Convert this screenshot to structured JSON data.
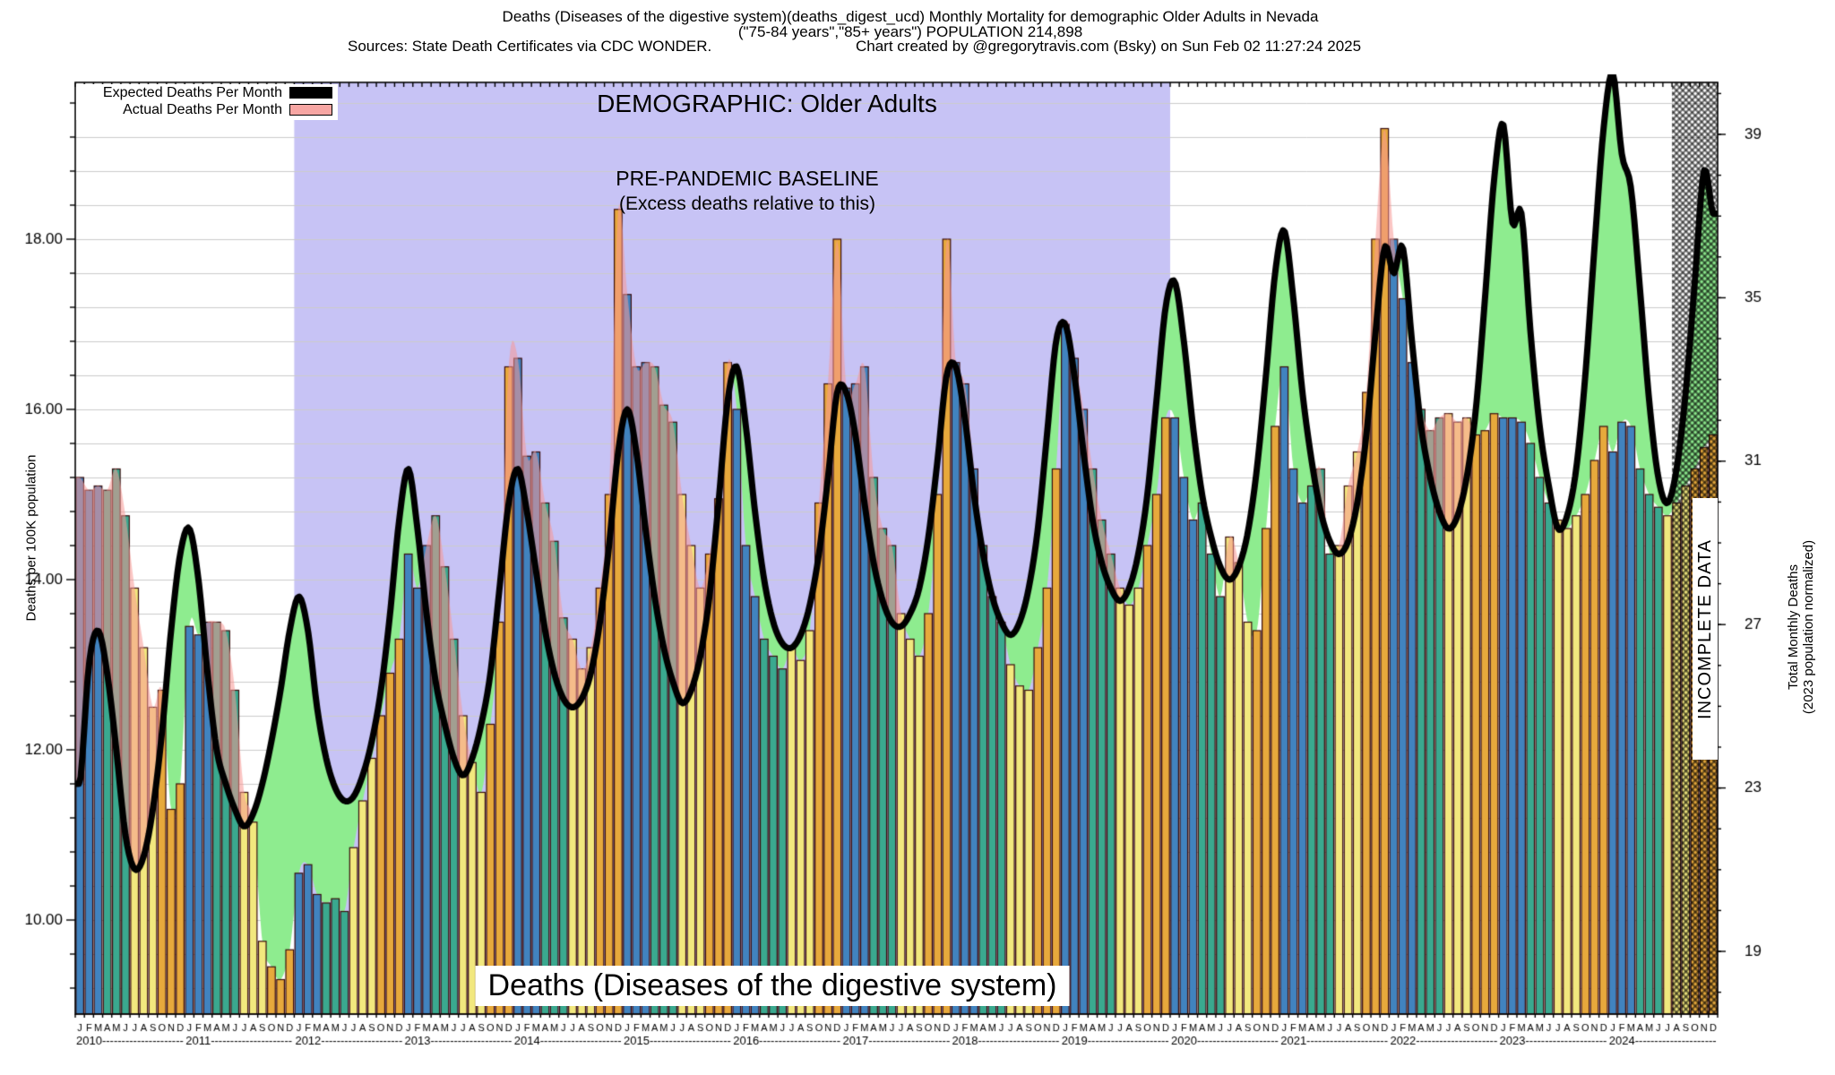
{
  "title": {
    "line1": "Deaths (Diseases of the digestive system)(deaths_digest_ucd) Monthly Mortality for demographic Older Adults in Nevada",
    "line2": "(\"75-84 years\",\"85+ years\") POPULATION 214,898",
    "sources": "Sources: State Death Certificates via CDC WONDER.",
    "credit": "Chart created by @gregorytravis.com (Bsky) on Sun Feb 02 11:27:24 2025"
  },
  "legend": {
    "expected_label": "Expected Deaths Per Month",
    "actual_label": "Actual Deaths Per Month"
  },
  "overlays": {
    "demographic": "DEMOGRAPHIC: Older Adults",
    "baseline_line1": "PRE-PANDEMIC BASELINE",
    "baseline_line2": "(Excess deaths relative to this)",
    "bottom_label": "Deaths (Diseases of the digestive system)",
    "incomplete_label": "INCOMPLETE DATA"
  },
  "left_axis": {
    "title": "Deaths per 100K population",
    "ticks": [
      10,
      12,
      14,
      16,
      18
    ],
    "minor_step": 0.4
  },
  "right_axis": {
    "title_line1": "Total Monthly Deaths",
    "title_line2": "(2023 population normalized)",
    "ticks": [
      19,
      23,
      27,
      31,
      35,
      39
    ]
  },
  "x_axis": {
    "month_letters": [
      "J",
      "F",
      "M",
      "A",
      "M",
      "J",
      "J",
      "A",
      "S",
      "O",
      "N",
      "D"
    ],
    "years": [
      2010,
      2011,
      2012,
      2013,
      2014,
      2015,
      2016,
      2017,
      2018,
      2019,
      2020,
      2021,
      2022,
      2023,
      2024
    ]
  },
  "colors": {
    "quarter_bar_colors": [
      "#4183bf",
      "#3aa98f",
      "#f2e87e",
      "#e7a93c"
    ],
    "bar_outline": "#3a0d0d",
    "expected_line": "#000000",
    "actual_fill": "rgba(248,152,148,0.55)",
    "actual_legend_swatch": "#f7a6a3",
    "deficit_green": "#8eec8f",
    "prepandemic_band": "#c7c3f5",
    "gridline": "#cbcbcb",
    "hatch": "rgba(0,0,0,0.5)"
  },
  "chart_data": {
    "type": "bar+line",
    "x_start": "2010-01",
    "x_end": "2024-12",
    "ylabel_left": "Deaths per 100K population",
    "ylabel_right": "Total Monthly Deaths (2023 population normalized)",
    "ylim_left": [
      8.9,
      19.84
    ],
    "pre_pandemic_window": {
      "start": "2012-01",
      "end": "2019-12"
    },
    "incomplete_window": {
      "start": "2024-08",
      "end": "2024-12"
    },
    "series": [
      {
        "name": "Actual Deaths Per Month",
        "role": "bars_and_pink_area"
      },
      {
        "name": "Expected Deaths Per Month",
        "role": "black_line"
      }
    ],
    "actual_by_year": {
      "2010": [
        15.2,
        15.05,
        15.1,
        15.05,
        15.3,
        14.75,
        13.9,
        13.2,
        12.5,
        12.7,
        11.3,
        11.6
      ],
      "2011": [
        13.45,
        13.35,
        13.5,
        13.5,
        13.4,
        12.7,
        11.5,
        11.15,
        9.75,
        9.45,
        9.3,
        9.65
      ],
      "2012": [
        10.55,
        10.65,
        10.3,
        10.2,
        10.25,
        10.1,
        10.85,
        11.4,
        11.9,
        12.4,
        12.9,
        13.3
      ],
      "2013": [
        14.3,
        13.9,
        14.4,
        14.75,
        14.15,
        13.3,
        12.4,
        11.85,
        11.5,
        12.3,
        13.5,
        16.5
      ],
      "2014": [
        16.6,
        15.45,
        15.5,
        14.9,
        14.45,
        13.55,
        13.3,
        12.95,
        13.2,
        13.9,
        15.0,
        18.35
      ],
      "2015": [
        17.35,
        16.5,
        16.55,
        16.5,
        16.05,
        15.85,
        15.0,
        14.4,
        13.9,
        14.3,
        14.95,
        16.55
      ],
      "2016": [
        16.0,
        14.4,
        13.8,
        13.3,
        13.1,
        12.95,
        13.2,
        13.05,
        13.4,
        14.9,
        16.3,
        18.0
      ],
      "2017": [
        16.25,
        16.3,
        16.5,
        15.2,
        14.6,
        14.4,
        13.6,
        13.3,
        13.1,
        13.6,
        15.0,
        18.0
      ],
      "2018": [
        16.55,
        16.3,
        15.3,
        14.4,
        13.8,
        13.5,
        13.0,
        12.75,
        12.7,
        13.2,
        13.9,
        15.3
      ],
      "2019": [
        17.0,
        16.6,
        16.0,
        15.3,
        14.7,
        14.3,
        13.9,
        13.7,
        13.9,
        14.4,
        15.0,
        15.9
      ],
      "2020": [
        15.9,
        15.2,
        14.7,
        14.9,
        14.3,
        13.8,
        14.5,
        14.2,
        13.5,
        13.4,
        14.6,
        15.8
      ],
      "2021": [
        16.5,
        15.3,
        14.9,
        15.1,
        15.3,
        14.3,
        14.4,
        15.1,
        15.5,
        16.2,
        18.0,
        19.3
      ],
      "2022": [
        18.0,
        17.3,
        16.55,
        16.0,
        15.75,
        15.9,
        15.95,
        15.85,
        15.9,
        15.7,
        15.75,
        15.95
      ],
      "2023": [
        15.9,
        15.9,
        15.85,
        15.6,
        15.2,
        14.9,
        14.7,
        14.6,
        14.75,
        15.0,
        15.4,
        15.8
      ],
      "2024": [
        15.5,
        15.85,
        15.8,
        15.3,
        15.0,
        14.85,
        14.75,
        14.9,
        15.1,
        15.3,
        15.55,
        15.7
      ]
    },
    "expected_by_year": {
      "2010": [
        11.6,
        13.0,
        13.4,
        12.9,
        12.0,
        11.0,
        10.6,
        10.75,
        11.3,
        12.2,
        13.4,
        14.3
      ],
      "2011": [
        14.6,
        14.0,
        12.9,
        12.0,
        11.6,
        11.3,
        11.1,
        11.25,
        11.6,
        12.1,
        12.7,
        13.4
      ],
      "2012": [
        13.8,
        13.4,
        12.5,
        11.9,
        11.55,
        11.4,
        11.45,
        11.7,
        12.1,
        12.7,
        13.6,
        14.7
      ],
      "2013": [
        15.3,
        14.6,
        13.6,
        12.8,
        12.3,
        11.9,
        11.7,
        11.9,
        12.3,
        12.9,
        13.9,
        14.9
      ],
      "2014": [
        15.3,
        14.8,
        14.1,
        13.4,
        12.9,
        12.6,
        12.5,
        12.6,
        12.9,
        13.5,
        14.4,
        15.5
      ],
      "2015": [
        16.0,
        15.5,
        14.6,
        13.8,
        13.2,
        12.8,
        12.55,
        12.7,
        13.1,
        13.8,
        14.9,
        16.1
      ],
      "2016": [
        16.5,
        15.8,
        14.8,
        14.0,
        13.5,
        13.25,
        13.2,
        13.35,
        13.7,
        14.3,
        15.2,
        16.2
      ],
      "2017": [
        16.2,
        15.7,
        14.9,
        14.2,
        13.75,
        13.5,
        13.45,
        13.6,
        13.9,
        14.5,
        15.4,
        16.4
      ],
      "2018": [
        16.5,
        15.9,
        15.0,
        14.3,
        13.8,
        13.5,
        13.35,
        13.5,
        13.9,
        14.6,
        15.7,
        16.8
      ],
      "2019": [
        17.0,
        16.4,
        15.5,
        14.7,
        14.2,
        13.9,
        13.75,
        13.9,
        14.3,
        15.0,
        16.1,
        17.2
      ],
      "2020": [
        17.5,
        16.8,
        15.8,
        15.0,
        14.5,
        14.15,
        14.0,
        14.15,
        14.55,
        15.3,
        16.4,
        17.6
      ],
      "2021": [
        18.1,
        17.3,
        16.2,
        15.4,
        14.8,
        14.45,
        14.3,
        14.45,
        14.9,
        15.7,
        16.9,
        17.9
      ],
      "2022": [
        17.6,
        17.9,
        16.8,
        15.8,
        15.2,
        14.8,
        14.6,
        14.75,
        15.2,
        16.0,
        17.3,
        18.7
      ],
      "2023": [
        19.35,
        18.2,
        18.3,
        16.9,
        15.8,
        15.1,
        14.6,
        14.75,
        15.3,
        16.4,
        17.9,
        19.3
      ],
      "2024": [
        19.95,
        19.0,
        18.6,
        17.4,
        16.1,
        15.2,
        14.9,
        15.3,
        16.2,
        17.5,
        18.8,
        18.3
      ]
    }
  }
}
